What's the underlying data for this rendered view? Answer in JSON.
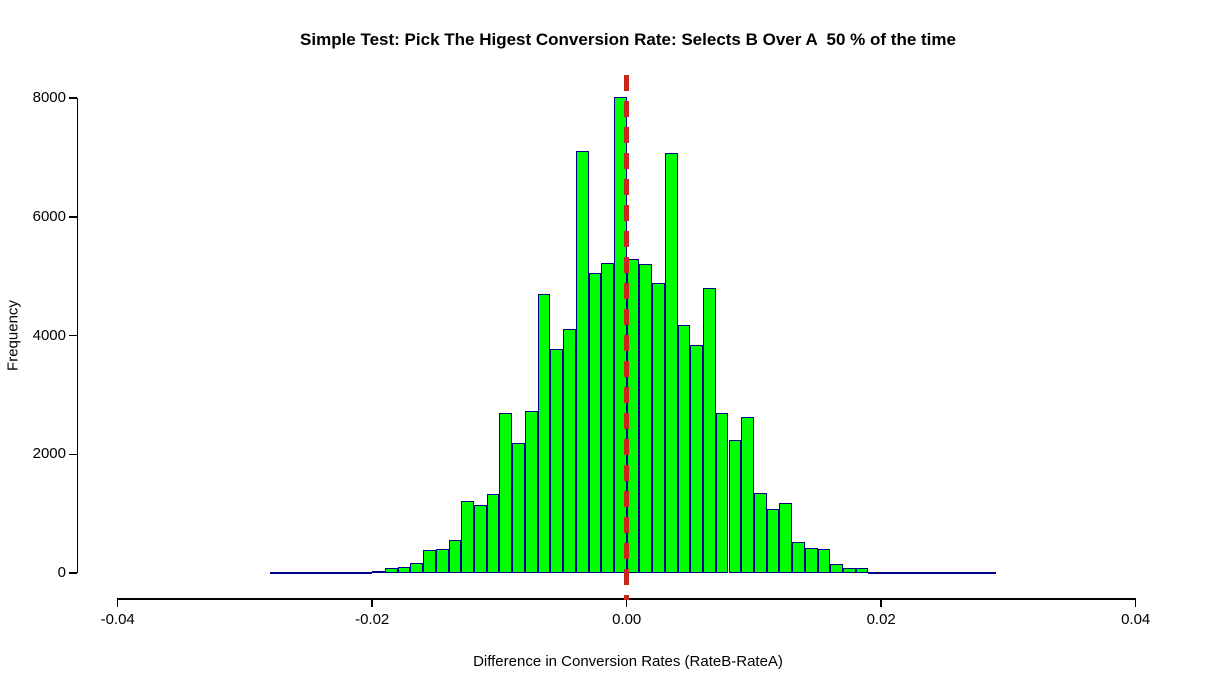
{
  "chart_data": {
    "type": "bar",
    "subtype": "histogram",
    "title": "Simple Test: Pick The Higest Conversion Rate: Selects B Over A  50 % of the time",
    "xlabel": "Difference in Conversion Rates (RateB-RateA)",
    "ylabel": "Frequency",
    "x_ticks": [
      {
        "v": -0.04,
        "label": "-0.04"
      },
      {
        "v": -0.02,
        "label": "-0.02"
      },
      {
        "v": 0.0,
        "label": "0.00"
      },
      {
        "v": 0.02,
        "label": "0.02"
      },
      {
        "v": 0.04,
        "label": "0.04"
      }
    ],
    "y_ticks": [
      {
        "v": 0,
        "label": "0"
      },
      {
        "v": 2000,
        "label": "2000"
      },
      {
        "v": 4000,
        "label": "4000"
      },
      {
        "v": 6000,
        "label": "6000"
      },
      {
        "v": 8000,
        "label": "8000"
      }
    ],
    "ylim": [
      0,
      8000
    ],
    "grid": false,
    "legend": "none",
    "bin_width": 0.001,
    "bin_start": -0.028,
    "counts": [
      2,
      2,
      3,
      3,
      4,
      10,
      12,
      20,
      30,
      85,
      105,
      165,
      380,
      400,
      555,
      1220,
      1145,
      1330,
      2690,
      2185,
      2730,
      4695,
      3770,
      4110,
      7115,
      5050,
      5215,
      8010,
      5290,
      5200,
      4885,
      7080,
      4175,
      3845,
      4795,
      2700,
      2240,
      2620,
      1340,
      1070,
      1185,
      530,
      425,
      405,
      150,
      80,
      90,
      15,
      5,
      20,
      4,
      3,
      3,
      2,
      2,
      2,
      2
    ],
    "reference_line": {
      "x": 0.0,
      "style": "dashed",
      "color": "#C8271D"
    },
    "colors": {
      "bar_fill": "#00FF00",
      "bar_border": "#00008B",
      "axis": "#000000",
      "text": "#000000",
      "background": "#FFFFFF"
    }
  }
}
